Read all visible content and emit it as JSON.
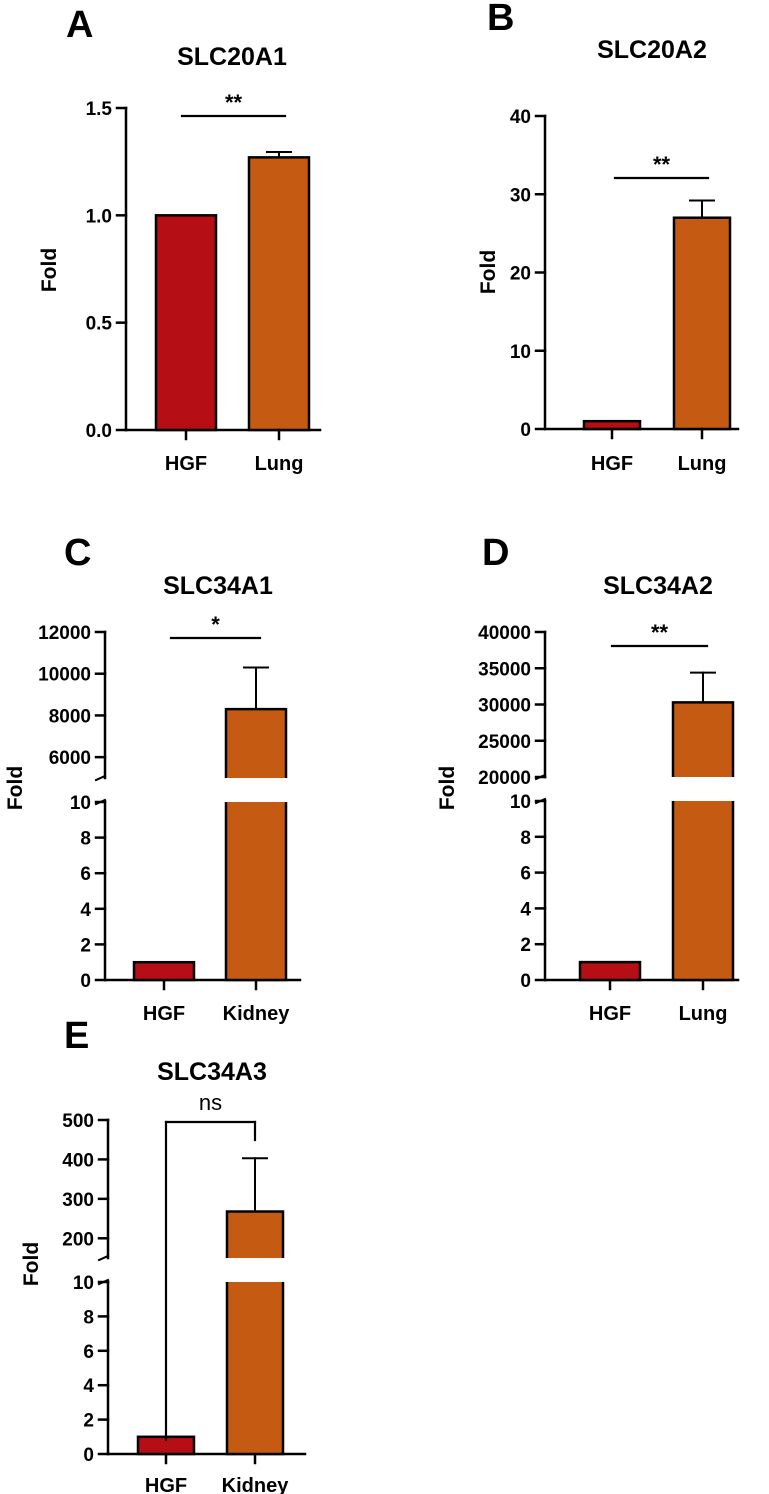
{
  "figure": {
    "colors": {
      "hgf": "#B50E14",
      "other": "#C55A12",
      "axis": "#000000"
    }
  },
  "chart_data": [
    {
      "panel": "A",
      "type": "bar",
      "title": "SLC20A1",
      "ylabel": "Fold",
      "categories": [
        "HGF",
        "Lung"
      ],
      "values": [
        1.0,
        1.27
      ],
      "errors": [
        0,
        0.025
      ],
      "ylim": [
        0,
        1.5
      ],
      "yticks": [
        0.0,
        0.5,
        1.0,
        1.5
      ],
      "ytick_labels": [
        "0.0",
        "0.5",
        "1.0",
        "1.5"
      ],
      "significance": {
        "label": "**",
        "style": "line"
      }
    },
    {
      "panel": "B",
      "type": "bar",
      "title": "SLC20A2",
      "ylabel": "Fold",
      "categories": [
        "HGF",
        "Lung"
      ],
      "values": [
        1.0,
        27.0
      ],
      "errors": [
        0,
        2.2
      ],
      "ylim": [
        0,
        40
      ],
      "yticks": [
        0,
        10,
        20,
        30,
        40
      ],
      "ytick_labels": [
        "0",
        "10",
        "20",
        "30",
        "40"
      ],
      "significance": {
        "label": "**",
        "style": "line"
      }
    },
    {
      "panel": "C",
      "type": "bar",
      "title": "SLC34A1",
      "ylabel": "Fold",
      "categories": [
        "HGF",
        "Kidney"
      ],
      "values": [
        1.0,
        8300
      ],
      "errors": [
        0,
        2000
      ],
      "broken_axis": true,
      "lower_ylim": [
        0,
        10
      ],
      "upper_ylim": [
        5000,
        12000
      ],
      "lower_ticks": [
        0,
        2,
        4,
        6,
        8,
        10
      ],
      "lower_tick_labels": [
        "0",
        "2",
        "4",
        "6",
        "8",
        "10"
      ],
      "upper_ticks": [
        6000,
        8000,
        10000,
        12000
      ],
      "upper_tick_labels": [
        "6000",
        "8000",
        "10000",
        "12000"
      ],
      "significance": {
        "label": "*",
        "style": "line"
      }
    },
    {
      "panel": "D",
      "type": "bar",
      "title": "SLC34A2",
      "ylabel": "Fold",
      "categories": [
        "HGF",
        "Lung"
      ],
      "values": [
        1.0,
        30300
      ],
      "errors": [
        0,
        4100
      ],
      "broken_axis": true,
      "lower_ylim": [
        0,
        10
      ],
      "upper_ylim": [
        20000,
        40000
      ],
      "lower_ticks": [
        0,
        2,
        4,
        6,
        8,
        10
      ],
      "lower_tick_labels": [
        "0",
        "2",
        "4",
        "6",
        "8",
        "10"
      ],
      "upper_ticks": [
        20000,
        25000,
        30000,
        35000,
        40000
      ],
      "upper_tick_labels": [
        "20000",
        "25000",
        "30000",
        "35000",
        "40000"
      ],
      "significance": {
        "label": "**",
        "style": "line"
      }
    },
    {
      "panel": "E",
      "type": "bar",
      "title": "SLC34A3",
      "ylabel": "Fold",
      "categories": [
        "HGF",
        "Kidney"
      ],
      "values": [
        1.0,
        268
      ],
      "errors": [
        0,
        135
      ],
      "broken_axis": true,
      "lower_ylim": [
        0,
        10
      ],
      "upper_ylim": [
        150,
        500
      ],
      "lower_ticks": [
        0,
        2,
        4,
        6,
        8,
        10
      ],
      "lower_tick_labels": [
        "0",
        "2",
        "4",
        "6",
        "8",
        "10"
      ],
      "upper_ticks": [
        200,
        300,
        400,
        500
      ],
      "upper_tick_labels": [
        "200",
        "300",
        "400",
        "500"
      ],
      "significance": {
        "label": "ns",
        "style": "bracket"
      }
    }
  ]
}
